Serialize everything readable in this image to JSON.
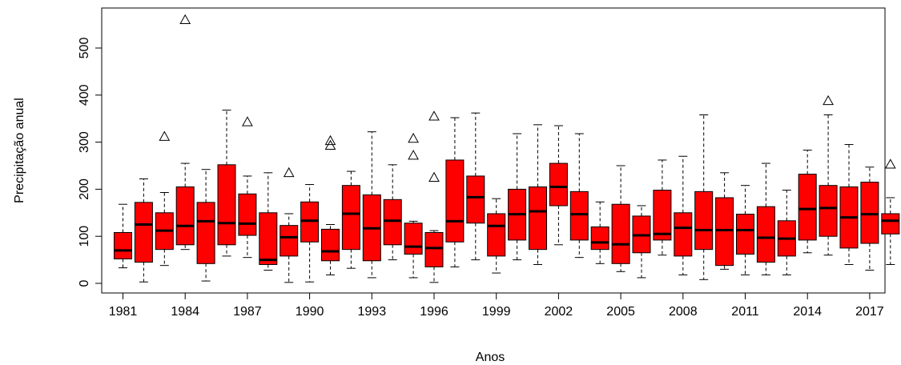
{
  "chart_data": {
    "type": "boxplot",
    "title": "",
    "xlabel": "Anos",
    "ylabel": "Precipitação anual",
    "ylim": [
      -20,
      580
    ],
    "yticks": [
      0,
      100,
      200,
      300,
      400,
      500
    ],
    "grid": false,
    "legend": "none",
    "box_color": "#ff0000",
    "box_border": "#000000",
    "outlier_marker": "open-triangle",
    "x_tick_labels": [
      "1981",
      "1984",
      "1987",
      "1990",
      "1993",
      "1996",
      "1999",
      "2002",
      "2005",
      "2008",
      "2011",
      "2014",
      "2017"
    ],
    "x_tick_years": [
      1981,
      1984,
      1987,
      1990,
      1993,
      1996,
      1999,
      2002,
      2005,
      2008,
      2011,
      2014,
      2017
    ],
    "years": [
      1981,
      1982,
      1983,
      1984,
      1985,
      1986,
      1987,
      1988,
      1989,
      1990,
      1991,
      1992,
      1993,
      1994,
      1995,
      1996,
      1997,
      1998,
      1999,
      2000,
      2001,
      2002,
      2003,
      2004,
      2005,
      2006,
      2007,
      2008,
      2009,
      2010,
      2011,
      2012,
      2013,
      2014,
      2015,
      2016,
      2017,
      2018
    ],
    "min": [
      33,
      3,
      38,
      72,
      5,
      58,
      55,
      28,
      2,
      3,
      18,
      32,
      12,
      50,
      12,
      2,
      35,
      50,
      22,
      50,
      40,
      82,
      55,
      42,
      25,
      12,
      60,
      18,
      8,
      30,
      18,
      18,
      18,
      65,
      60,
      40,
      28,
      40
    ],
    "q1": [
      52,
      45,
      72,
      82,
      42,
      82,
      102,
      40,
      58,
      88,
      48,
      72,
      48,
      82,
      62,
      35,
      88,
      128,
      58,
      92,
      72,
      165,
      92,
      72,
      42,
      65,
      92,
      58,
      72,
      38,
      62,
      45,
      58,
      92,
      100,
      75,
      85,
      105
    ],
    "median": [
      70,
      125,
      112,
      122,
      132,
      128,
      127,
      50,
      98,
      133,
      68,
      148,
      117,
      133,
      78,
      75,
      132,
      183,
      122,
      147,
      153,
      205,
      147,
      87,
      83,
      102,
      105,
      118,
      113,
      113,
      113,
      97,
      95,
      158,
      160,
      140,
      147,
      133
    ],
    "q3": [
      108,
      172,
      150,
      205,
      172,
      252,
      190,
      150,
      123,
      173,
      115,
      208,
      188,
      178,
      128,
      108,
      262,
      228,
      148,
      200,
      205,
      255,
      195,
      120,
      168,
      143,
      198,
      150,
      195,
      182,
      147,
      163,
      133,
      232,
      208,
      205,
      215,
      148
    ],
    "max": [
      168,
      222,
      193,
      255,
      242,
      368,
      228,
      235,
      148,
      210,
      125,
      238,
      322,
      252,
      132,
      112,
      352,
      362,
      180,
      318,
      337,
      335,
      318,
      173,
      250,
      165,
      262,
      270,
      358,
      235,
      208,
      255,
      198,
      283,
      358,
      295,
      247,
      182
    ],
    "outliers": [
      {
        "year": 1983,
        "value": 312
      },
      {
        "year": 1984,
        "value": 560
      },
      {
        "year": 1987,
        "value": 343
      },
      {
        "year": 1989,
        "value": 235
      },
      {
        "year": 1991,
        "value": 303
      },
      {
        "year": 1991,
        "value": 293
      },
      {
        "year": 1995,
        "value": 308
      },
      {
        "year": 1995,
        "value": 272
      },
      {
        "year": 1996,
        "value": 355
      },
      {
        "year": 1996,
        "value": 225
      },
      {
        "year": 2015,
        "value": 388
      },
      {
        "year": 2018,
        "value": 253
      }
    ]
  }
}
